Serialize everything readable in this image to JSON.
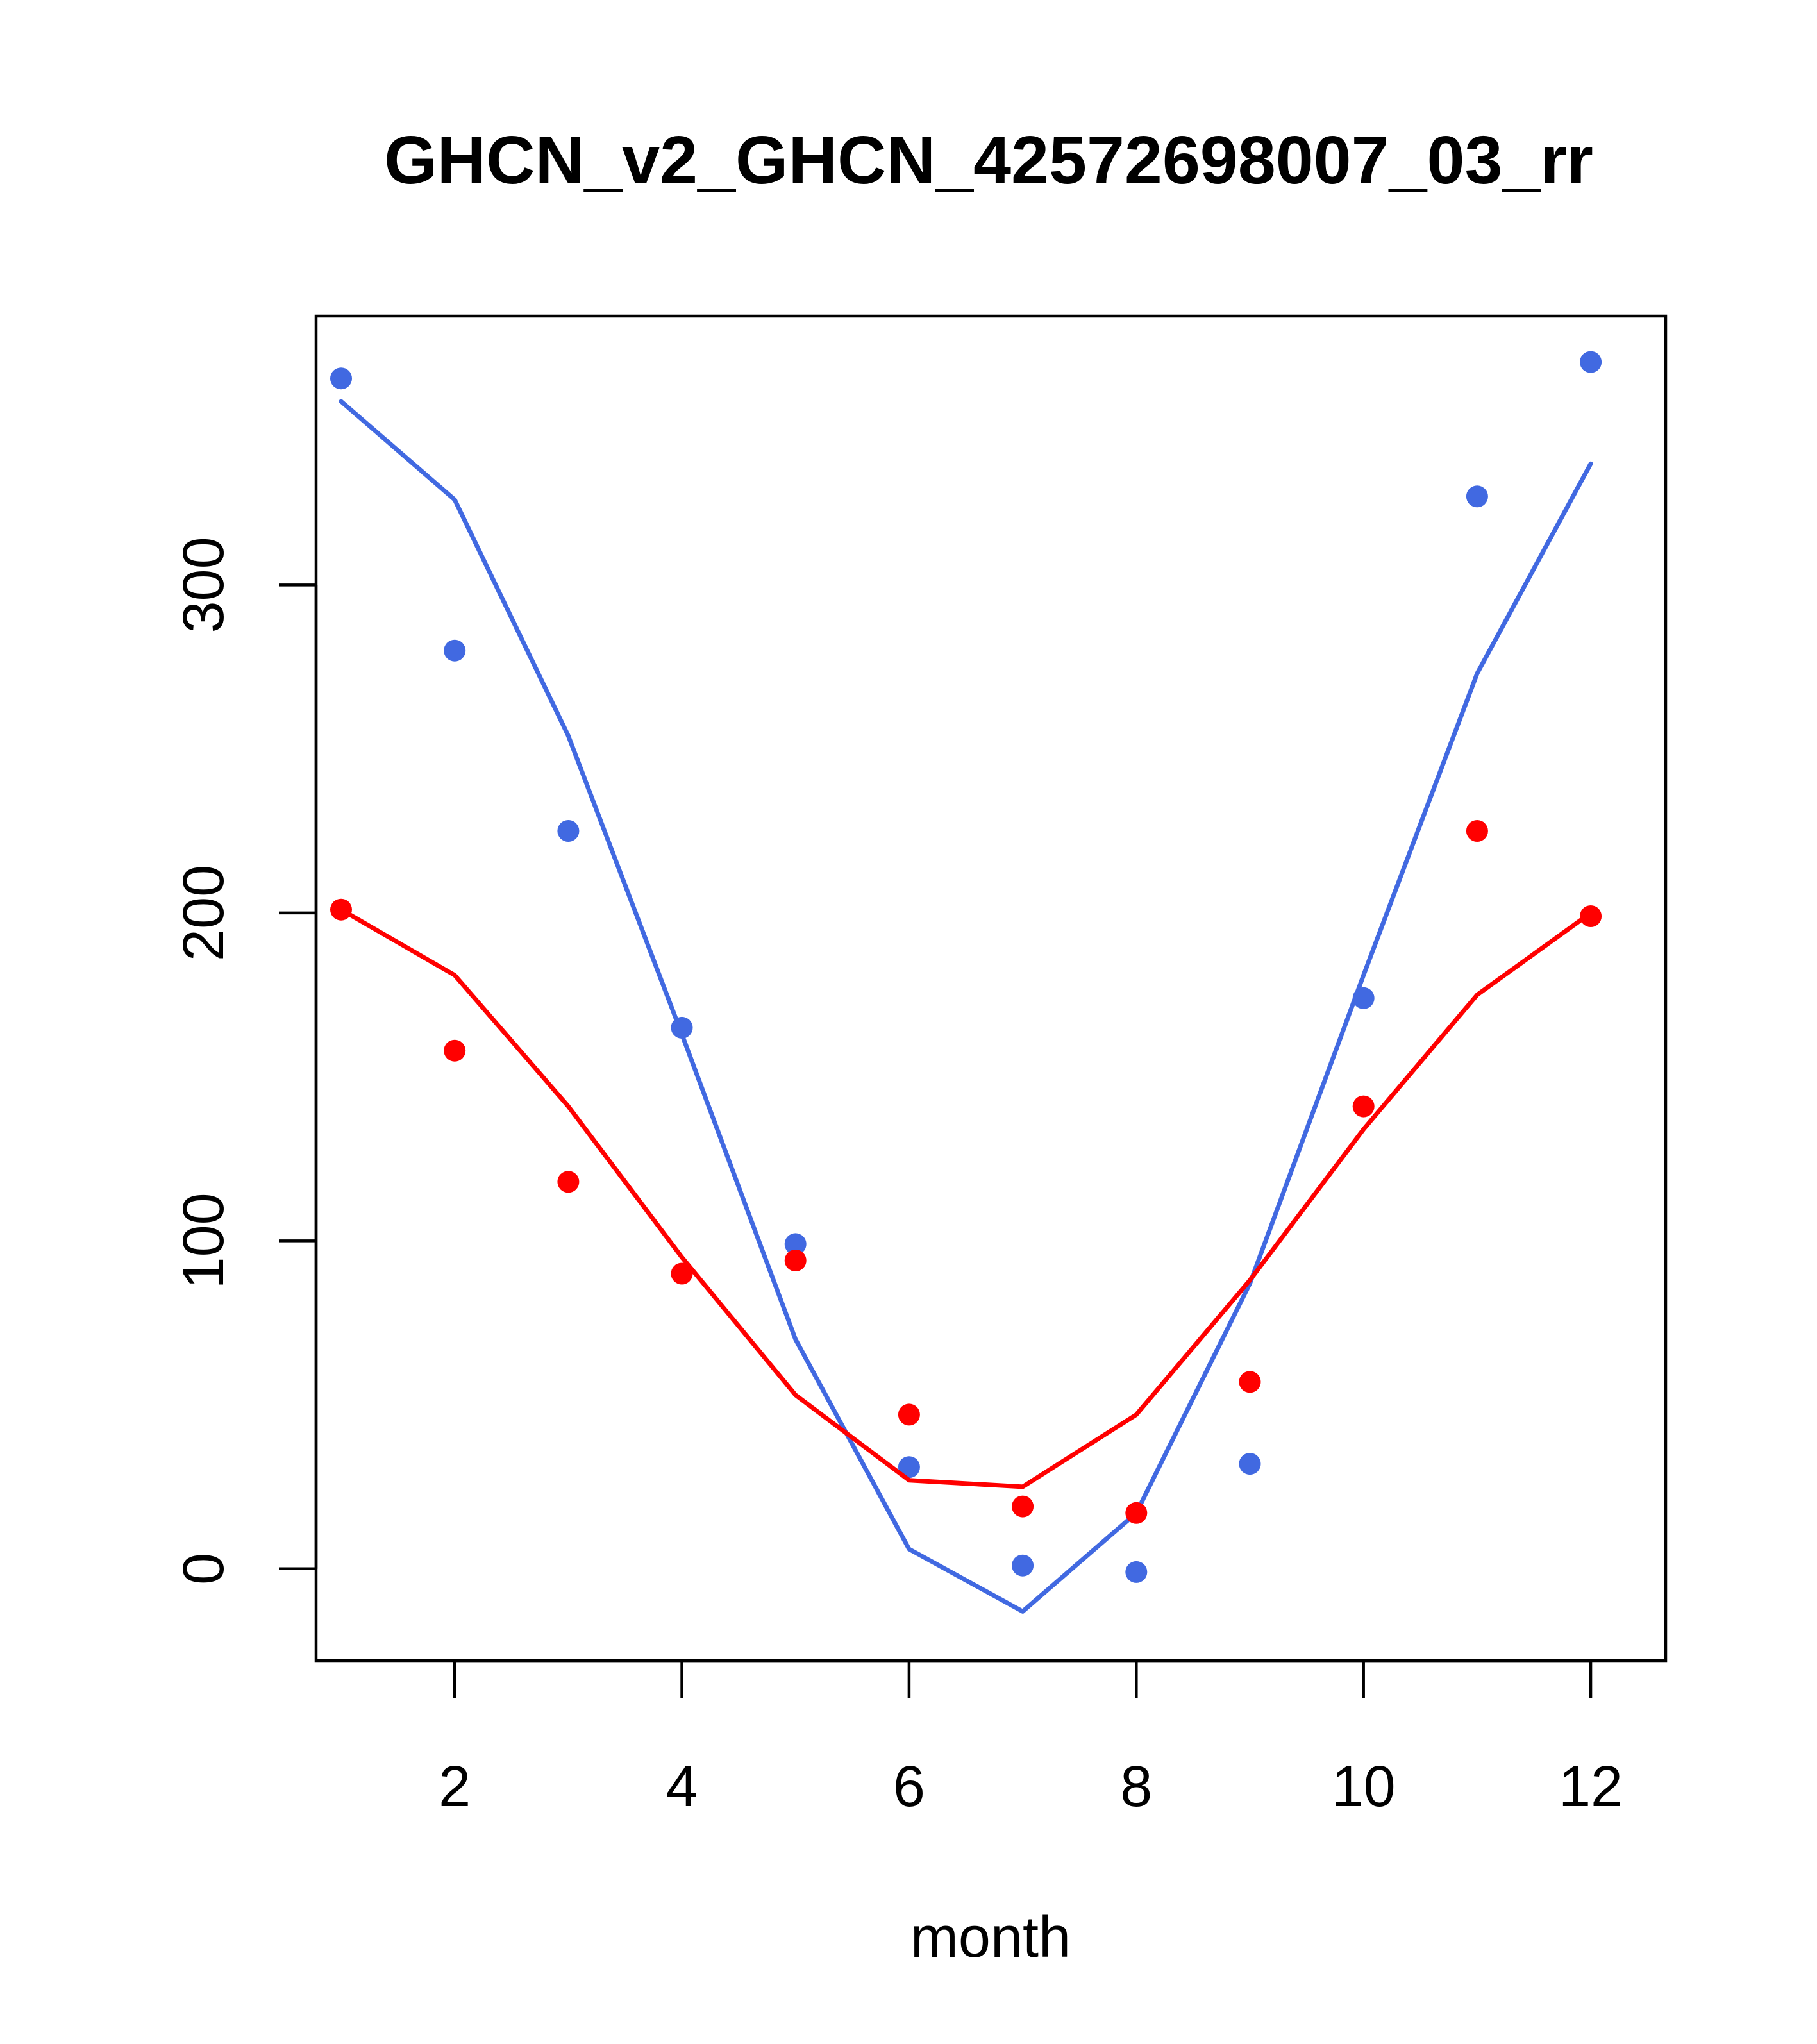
{
  "chart_data": {
    "type": "line",
    "title": "GHCN_v2_GHCN_42572698007_03_rr",
    "xlabel": "month",
    "ylabel": "",
    "xlim": [
      0.78,
      12.66
    ],
    "ylim": [
      -28,
      382
    ],
    "x_ticks": [
      2,
      4,
      6,
      8,
      10,
      12
    ],
    "y_ticks": [
      0,
      100,
      200,
      300
    ],
    "grid": false,
    "legend": "none",
    "series": [
      {
        "color": "#4169E1",
        "points": [
          {
            "x": 1,
            "y": 363
          },
          {
            "x": 2,
            "y": 280
          },
          {
            "x": 3,
            "y": 225
          },
          {
            "x": 4,
            "y": 165
          },
          {
            "x": 5,
            "y": 99
          },
          {
            "x": 6,
            "y": 31
          },
          {
            "x": 7,
            "y": 1
          },
          {
            "x": 8,
            "y": -1
          },
          {
            "x": 9,
            "y": 32
          },
          {
            "x": 10,
            "y": 174
          },
          {
            "x": 11,
            "y": 327
          },
          {
            "x": 12,
            "y": 368
          }
        ],
        "line": [
          {
            "x": 1,
            "y": 356
          },
          {
            "x": 2,
            "y": 326
          },
          {
            "x": 3,
            "y": 254
          },
          {
            "x": 4,
            "y": 163
          },
          {
            "x": 5,
            "y": 70
          },
          {
            "x": 6,
            "y": 6
          },
          {
            "x": 7,
            "y": -13
          },
          {
            "x": 8,
            "y": 17
          },
          {
            "x": 9,
            "y": 87
          },
          {
            "x": 10,
            "y": 181
          },
          {
            "x": 11,
            "y": 273
          },
          {
            "x": 12,
            "y": 337
          }
        ]
      },
      {
        "color": "#FF0000",
        "points": [
          {
            "x": 1,
            "y": 201
          },
          {
            "x": 2,
            "y": 158
          },
          {
            "x": 3,
            "y": 118
          },
          {
            "x": 4,
            "y": 90
          },
          {
            "x": 5,
            "y": 94
          },
          {
            "x": 6,
            "y": 47
          },
          {
            "x": 7,
            "y": 19
          },
          {
            "x": 8,
            "y": 17
          },
          {
            "x": 9,
            "y": 57
          },
          {
            "x": 10,
            "y": 141
          },
          {
            "x": 11,
            "y": 225
          },
          {
            "x": 12,
            "y": 199
          }
        ],
        "line": [
          {
            "x": 1,
            "y": 201
          },
          {
            "x": 2,
            "y": 181
          },
          {
            "x": 3,
            "y": 141
          },
          {
            "x": 4,
            "y": 95
          },
          {
            "x": 5,
            "y": 53
          },
          {
            "x": 6,
            "y": 27
          },
          {
            "x": 7,
            "y": 25
          },
          {
            "x": 8,
            "y": 47
          },
          {
            "x": 9,
            "y": 88
          },
          {
            "x": 10,
            "y": 134
          },
          {
            "x": 11,
            "y": 175
          },
          {
            "x": 12,
            "y": 200
          }
        ]
      }
    ]
  }
}
